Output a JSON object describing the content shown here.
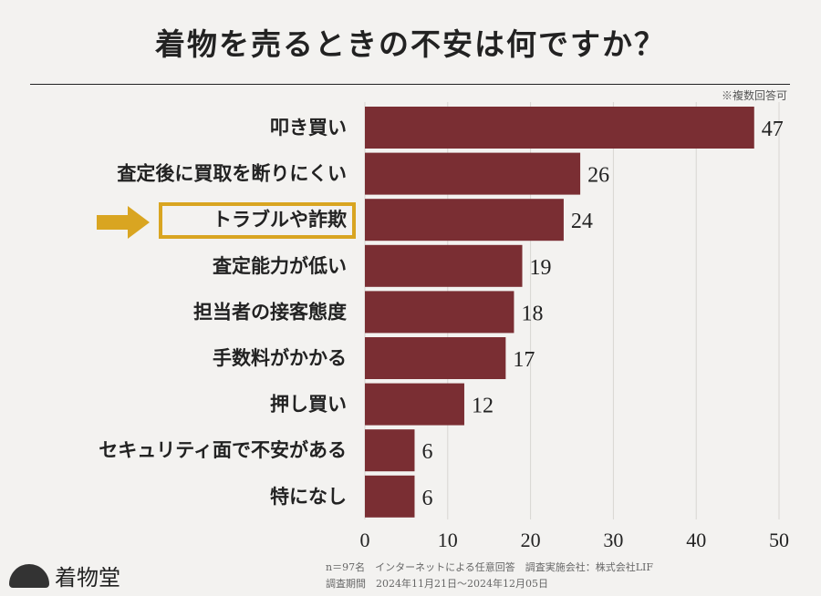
{
  "title": "着物を売るときの不安は何ですか？",
  "note": "※複数回答可",
  "footer": {
    "line1": "n＝97名　インターネットによる任意回答　調査実施会社：株式会社LIF",
    "line2": "調査期間　2024年11月21日～2024年12月05日"
  },
  "logo": {
    "text": "着物堂"
  },
  "colors": {
    "bar": "#7a2e33",
    "highlight": "#d9a521"
  },
  "chart_data": {
    "type": "bar",
    "orientation": "horizontal",
    "categories": [
      "叩き買い",
      "査定後に買取を断りにくい",
      "トラブルや詐欺",
      "査定能力が低い",
      "担当者の接客態度",
      "手数料がかかる",
      "押し買い",
      "セキュリティ面で不安がある",
      "特になし"
    ],
    "values": [
      47,
      26,
      24,
      19,
      18,
      17,
      12,
      6,
      6
    ],
    "xlim": [
      0,
      50
    ],
    "ticks": [
      "0",
      "10",
      "20",
      "30",
      "40",
      "50"
    ],
    "grid": true,
    "highlighted_category": "トラブルや詐欺"
  }
}
